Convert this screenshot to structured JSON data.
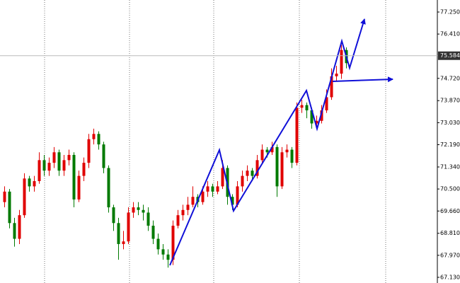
{
  "chart_data": {
    "type": "candlestick",
    "up_color": "#e00000",
    "down_color": "#007a00",
    "ylim": [
      67.13,
      77.25
    ],
    "yticks": [
      {
        "value": 77.25,
        "label": "77.250"
      },
      {
        "value": 76.41,
        "label": "76.410"
      },
      {
        "value": 74.72,
        "label": "74.720"
      },
      {
        "value": 73.87,
        "label": "73.870"
      },
      {
        "value": 73.03,
        "label": "73.030"
      },
      {
        "value": 72.19,
        "label": "72.190"
      },
      {
        "value": 71.34,
        "label": "71.340"
      },
      {
        "value": 70.5,
        "label": "70.500"
      },
      {
        "value": 69.66,
        "label": "69.660"
      },
      {
        "value": 68.81,
        "label": "68.810"
      },
      {
        "value": 67.97,
        "label": "67.970"
      },
      {
        "value": 67.13,
        "label": "67.130"
      }
    ],
    "current_price": {
      "value": 75.584,
      "label": "75.584"
    },
    "open": [
      70.0,
      70.4,
      69.2,
      68.6,
      69.5,
      70.9,
      70.6,
      70.8,
      71.6,
      71.2,
      71.5,
      71.9,
      71.2,
      71.6,
      71.8,
      70.1,
      71.0,
      71.5,
      72.4,
      72.6,
      72.2,
      71.3,
      69.8,
      69.2,
      68.4,
      68.5,
      69.6,
      69.8,
      69.7,
      69.6,
      69.1,
      68.6,
      68.2,
      68.0,
      67.8,
      69.1,
      69.5,
      69.7,
      69.9,
      70.2,
      70.0,
      70.4,
      70.6,
      70.4,
      70.6,
      71.3,
      70.2,
      69.9,
      70.6,
      71.0,
      71.2,
      71.0,
      71.6,
      72.0,
      71.9,
      72.1,
      70.6,
      71.9,
      72.0,
      71.5,
      73.6,
      73.7,
      73.5,
      73.0,
      73.1,
      73.5,
      74.0,
      74.8,
      74.9,
      75.8
    ],
    "high": [
      70.6,
      70.5,
      69.4,
      69.7,
      71.1,
      71.0,
      71.0,
      71.9,
      71.8,
      71.7,
      72.1,
      72.0,
      71.8,
      72.0,
      71.9,
      71.2,
      71.7,
      72.6,
      72.8,
      72.7,
      72.3,
      71.4,
      69.9,
      69.4,
      68.9,
      69.8,
      70.0,
      70.0,
      69.9,
      69.8,
      69.3,
      68.8,
      68.4,
      68.2,
      69.3,
      69.7,
      69.9,
      70.2,
      70.6,
      70.3,
      70.6,
      70.8,
      70.7,
      70.8,
      71.6,
      71.4,
      70.3,
      70.8,
      71.2,
      71.4,
      71.3,
      71.8,
      72.2,
      72.1,
      72.3,
      72.2,
      72.1,
      72.2,
      72.1,
      73.8,
      73.9,
      73.8,
      73.6,
      73.3,
      73.7,
      74.3,
      75.1,
      75.2,
      76.0,
      75.9
    ],
    "low": [
      69.8,
      69.0,
      68.3,
      68.4,
      69.4,
      70.4,
      70.4,
      70.7,
      71.0,
      71.0,
      71.3,
      71.0,
      71.0,
      71.4,
      69.8,
      70.0,
      70.8,
      71.3,
      72.2,
      72.0,
      71.1,
      69.6,
      68.9,
      67.8,
      68.2,
      68.4,
      69.4,
      69.5,
      69.3,
      68.9,
      68.4,
      68.0,
      67.8,
      67.5,
      67.6,
      69.0,
      69.3,
      69.5,
      69.8,
      69.8,
      69.9,
      70.2,
      70.2,
      70.3,
      70.5,
      69.9,
      69.7,
      69.8,
      70.4,
      70.8,
      70.8,
      70.9,
      71.5,
      71.7,
      71.8,
      70.2,
      70.5,
      71.7,
      71.3,
      71.4,
      73.4,
      73.2,
      72.8,
      72.9,
      73.0,
      73.4,
      73.9,
      74.6,
      74.7,
      75.1
    ],
    "close": [
      70.4,
      69.2,
      68.6,
      69.5,
      70.9,
      70.6,
      70.8,
      71.6,
      71.2,
      71.5,
      71.9,
      71.2,
      71.6,
      71.8,
      70.1,
      71.0,
      71.5,
      72.4,
      72.6,
      72.2,
      71.3,
      69.8,
      69.2,
      68.4,
      68.5,
      69.6,
      69.8,
      69.7,
      69.6,
      69.1,
      68.6,
      68.2,
      68.0,
      67.8,
      69.1,
      69.5,
      69.7,
      69.9,
      70.2,
      70.0,
      70.4,
      70.6,
      70.4,
      70.6,
      71.3,
      70.2,
      69.9,
      70.6,
      71.0,
      71.2,
      71.0,
      71.6,
      72.0,
      71.9,
      72.1,
      70.6,
      71.9,
      72.0,
      71.5,
      73.6,
      73.7,
      73.5,
      73.0,
      73.1,
      73.5,
      74.0,
      74.8,
      74.9,
      75.8,
      75.3
    ]
  }
}
